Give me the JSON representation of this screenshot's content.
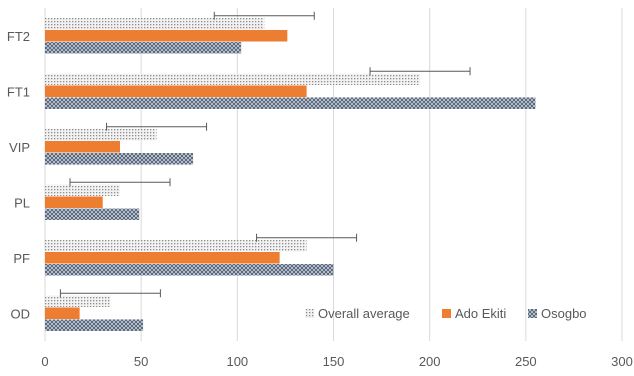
{
  "chart_data": {
    "type": "bar",
    "orientation": "horizontal",
    "categories": [
      "OD",
      "PF",
      "PL",
      "VIP",
      "FT1",
      "FT2"
    ],
    "series": [
      {
        "name": "Overall average",
        "values": [
          34,
          136,
          39,
          58,
          195,
          114
        ],
        "error": [
          26,
          26,
          26,
          26,
          26,
          26
        ],
        "color": "#bfbfbf",
        "pattern": "dotted"
      },
      {
        "name": "Ado Ekiti",
        "values": [
          18,
          122,
          30,
          39,
          136,
          126
        ],
        "color": "#ed7d31",
        "pattern": "solid"
      },
      {
        "name": "Osogbo",
        "values": [
          51,
          150,
          49,
          77,
          255,
          102
        ],
        "color": "#44546a",
        "pattern": "crosshatch"
      }
    ],
    "xlim": [
      0,
      300
    ],
    "xticks": [
      0,
      50,
      100,
      150,
      200,
      250,
      300
    ],
    "grid": "vertical",
    "legend_position": "bottom-right",
    "title": "",
    "xlabel": "",
    "ylabel": ""
  }
}
